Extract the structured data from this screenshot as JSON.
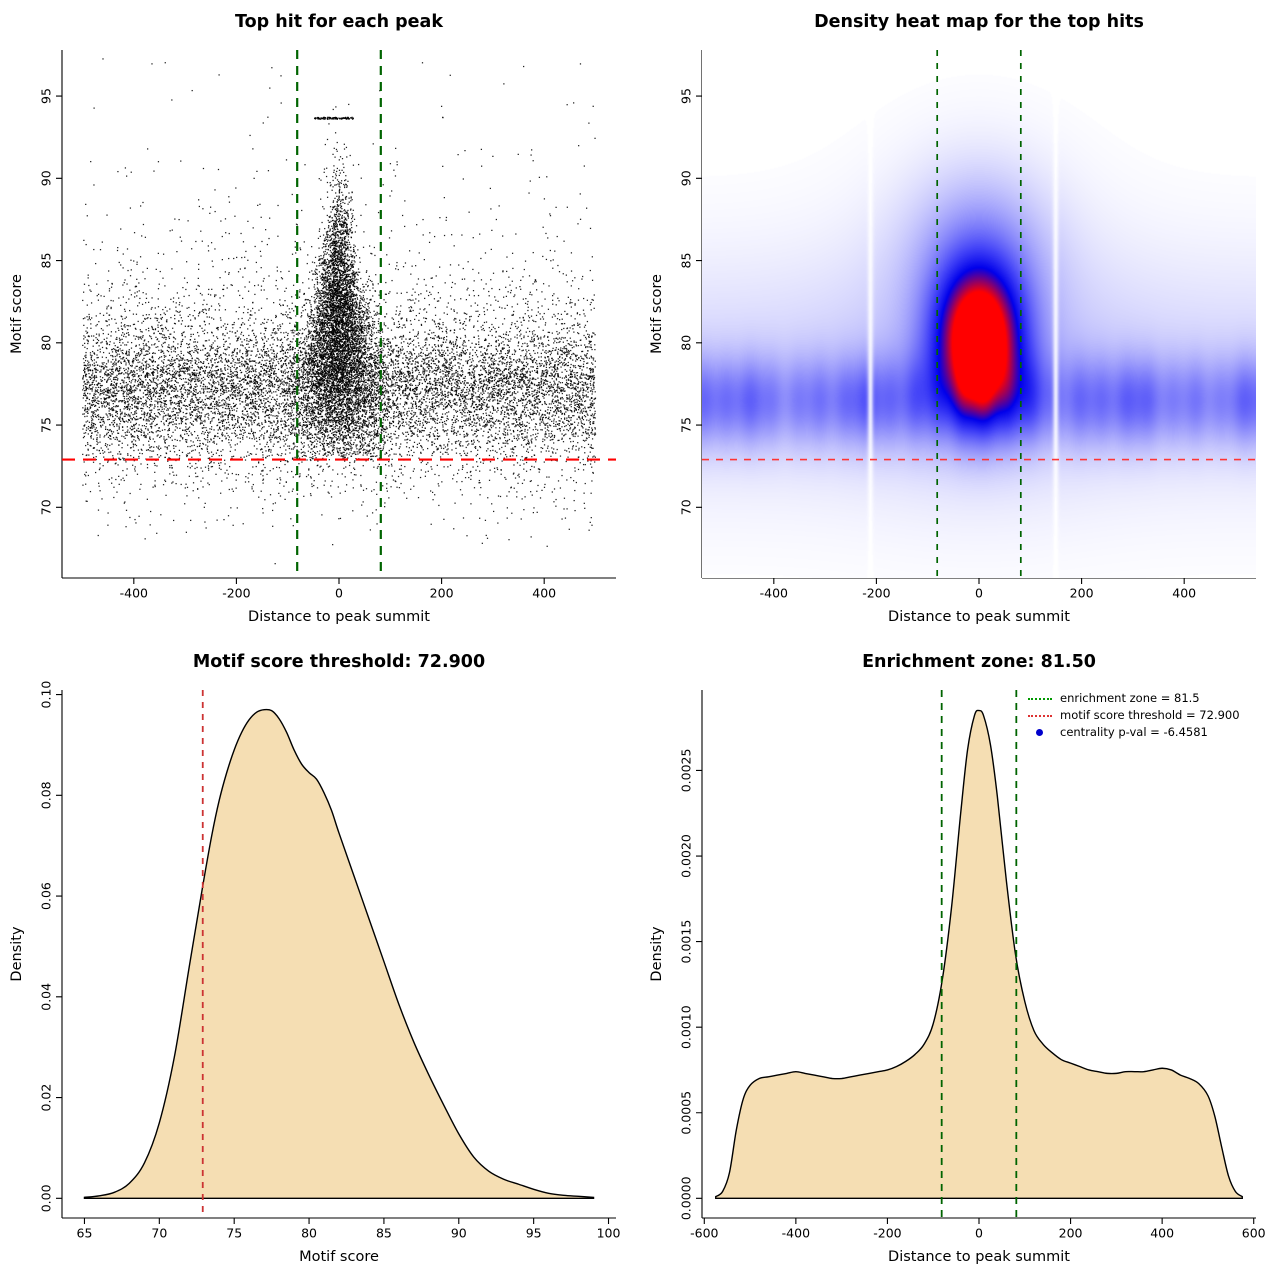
{
  "figure": {
    "background": "#ffffff",
    "motif_score_threshold": 72.9,
    "enrichment_zone": 81.5,
    "centrality_p_val": -6.4581
  },
  "chart_data": [
    {
      "type": "scatter",
      "title": "Top hit for each peak",
      "xlabel": "Distance to peak summit",
      "ylabel": "Motif score",
      "xlim": [
        -540,
        540
      ],
      "ylim": [
        65.7,
        97.8
      ],
      "xticks": {
        "values": [
          -400,
          -200,
          0,
          200,
          400
        ],
        "labels": [
          "-400",
          "-200",
          "0",
          "200",
          "400"
        ]
      },
      "yticks": {
        "values": [
          70,
          75,
          80,
          85,
          90,
          95
        ],
        "labels": [
          "70",
          "75",
          "80",
          "85",
          "90",
          "95"
        ]
      },
      "point_color": "#000000",
      "lines": [
        {
          "axis": "x",
          "at": -81.5,
          "color": "#006400",
          "dash": [
            9,
            7
          ],
          "width": 2.2
        },
        {
          "axis": "x",
          "at": 81.5,
          "color": "#006400",
          "dash": [
            9,
            7
          ],
          "width": 2.2
        },
        {
          "axis": "y",
          "at": 72.9,
          "color": "#ff0000",
          "dash": [
            13,
            8
          ],
          "width": 2.2
        }
      ],
      "generate": {
        "seed": 1337,
        "background_n": 12000,
        "cluster_n": 6200,
        "x_range": [
          -500,
          500
        ],
        "dash_mark": {
          "n": 110,
          "y": 93.65,
          "x_min": -48,
          "x_max": 28
        }
      }
    },
    {
      "type": "heatmap",
      "title": "Density heat map for the top hits",
      "xlabel": "Distance to peak summit",
      "ylabel": "Motif score",
      "xlim": [
        -540,
        540
      ],
      "ylim": [
        65.7,
        97.8
      ],
      "xticks": {
        "values": [
          -400,
          -200,
          0,
          200,
          400
        ],
        "labels": [
          "-400",
          "-200",
          "0",
          "200",
          "400"
        ]
      },
      "yticks": {
        "values": [
          70,
          75,
          80,
          85,
          90,
          95
        ],
        "labels": [
          "70",
          "75",
          "80",
          "85",
          "90",
          "95"
        ]
      },
      "colors": {
        "low": "#ffffff",
        "mid": "#4646f8",
        "deep": "#0000eb",
        "high": "#ff0000"
      },
      "kernels": {
        "band": {
          "yc": 76.4,
          "sy": 1.9,
          "a": 0.62
        },
        "wide": {
          "yc": 78.0,
          "sy": 5.2,
          "a": 0.22
        },
        "center": {
          "xc": 0,
          "sx": 60,
          "yc": 80.2,
          "sy": 3.1,
          "a": 2.05
        },
        "upper": {
          "xc": 0,
          "sx": 95,
          "yc": 85.5,
          "sy": 3.6,
          "a": 0.42
        },
        "halo": {
          "xc": 0,
          "sx": 170,
          "yc": 81.0,
          "sy": 6.5,
          "a": 0.16
        },
        "gaps": [
          -212,
          150
        ]
      },
      "lines": [
        {
          "axis": "x",
          "at": -81.5,
          "color": "#006400",
          "dash": [
            6,
            7
          ],
          "width": 1.7
        },
        {
          "axis": "x",
          "at": 81.5,
          "color": "#006400",
          "dash": [
            6,
            7
          ],
          "width": 1.7
        },
        {
          "axis": "y",
          "at": 72.9,
          "color": "#ff3333",
          "dash": [
            7,
            7
          ],
          "width": 1.6
        }
      ]
    },
    {
      "type": "density",
      "title": "Motif score threshold: 72.900",
      "xlabel": "Motif score",
      "ylabel": "Density",
      "xlim": [
        63.5,
        100.5
      ],
      "ylim": [
        -0.0039,
        0.1009
      ],
      "xticks": {
        "values": [
          65,
          70,
          75,
          80,
          85,
          90,
          95,
          100
        ],
        "labels": [
          "65",
          "70",
          "75",
          "80",
          "85",
          "90",
          "95",
          "100"
        ]
      },
      "yticks": {
        "values": [
          0,
          0.02,
          0.04,
          0.06,
          0.08,
          0.1
        ],
        "labels": [
          "0.00",
          "0.02",
          "0.04",
          "0.06",
          "0.08",
          "0.10"
        ]
      },
      "fill": "#f5deb3",
      "stroke": "#000000",
      "lines": [
        {
          "axis": "x",
          "at": 72.9,
          "color": "#cc3333",
          "dash": [
            6,
            6
          ],
          "width": 1.8
        }
      ],
      "curve": [
        [
          65,
          0.0002
        ],
        [
          66,
          0.0005
        ],
        [
          67,
          0.0012
        ],
        [
          68,
          0.003
        ],
        [
          69,
          0.007
        ],
        [
          70,
          0.015
        ],
        [
          71,
          0.028
        ],
        [
          72,
          0.046
        ],
        [
          72.9,
          0.062
        ],
        [
          73.5,
          0.072
        ],
        [
          74,
          0.079
        ],
        [
          74.5,
          0.0845
        ],
        [
          75,
          0.089
        ],
        [
          75.5,
          0.0925
        ],
        [
          76,
          0.095
        ],
        [
          76.5,
          0.0965
        ],
        [
          77,
          0.097
        ],
        [
          77.5,
          0.0968
        ],
        [
          78,
          0.0952
        ],
        [
          78.5,
          0.0925
        ],
        [
          79,
          0.089
        ],
        [
          79.5,
          0.0862
        ],
        [
          80,
          0.0845
        ],
        [
          80.5,
          0.0832
        ],
        [
          81,
          0.0805
        ],
        [
          81.5,
          0.077
        ],
        [
          82,
          0.0725
        ],
        [
          83,
          0.064
        ],
        [
          84,
          0.0555
        ],
        [
          85,
          0.047
        ],
        [
          86,
          0.0385
        ],
        [
          87,
          0.031
        ],
        [
          88,
          0.0245
        ],
        [
          89,
          0.0185
        ],
        [
          90,
          0.0128
        ],
        [
          91,
          0.0082
        ],
        [
          92,
          0.0054
        ],
        [
          93,
          0.0038
        ],
        [
          94,
          0.0028
        ],
        [
          95,
          0.0018
        ],
        [
          96,
          0.001
        ],
        [
          97,
          0.0006
        ],
        [
          98,
          0.0004
        ],
        [
          99,
          0.0002
        ]
      ]
    },
    {
      "type": "density",
      "title": "Enrichment zone: 81.50",
      "xlabel": "Distance to peak summit",
      "ylabel": "Density",
      "xlim": [
        -605,
        605
      ],
      "ylim": [
        -0.000115,
        0.00297
      ],
      "xticks": {
        "values": [
          -600,
          -400,
          -200,
          0,
          200,
          400,
          600
        ],
        "labels": [
          "-600",
          "-400",
          "-200",
          "0",
          "200",
          "400",
          "600"
        ]
      },
      "yticks": {
        "values": [
          0,
          0.0005,
          0.001,
          0.0015,
          0.002,
          0.0025
        ],
        "labels": [
          "0.0000",
          "0.0005",
          "0.0010",
          "0.0015",
          "0.0020",
          "0.0025"
        ]
      },
      "fill": "#f5deb3",
      "stroke": "#000000",
      "lines": [
        {
          "axis": "x",
          "at": -81.5,
          "color": "#006400",
          "dash": [
            7,
            6
          ],
          "width": 1.8
        },
        {
          "axis": "x",
          "at": 81.5,
          "color": "#006400",
          "dash": [
            7,
            6
          ],
          "width": 1.8
        }
      ],
      "legend": {
        "items": [
          {
            "label": "enrichment zone = 81.5",
            "color": "#009900",
            "marker": "dotted-line"
          },
          {
            "label": "motif score threshold = 72.900",
            "color": "#dd3333",
            "marker": "dotted-line"
          },
          {
            "label": "centrality p-val = -6.4581",
            "color": "#0000cc",
            "marker": "point"
          }
        ]
      },
      "curve": [
        [
          -575,
          1e-05
        ],
        [
          -560,
          4e-05
        ],
        [
          -545,
          0.00015
        ],
        [
          -530,
          0.0004
        ],
        [
          -515,
          0.00058
        ],
        [
          -500,
          0.00066
        ],
        [
          -480,
          0.0007
        ],
        [
          -460,
          0.00071
        ],
        [
          -440,
          0.00072
        ],
        [
          -420,
          0.00073
        ],
        [
          -400,
          0.00074
        ],
        [
          -380,
          0.00073
        ],
        [
          -360,
          0.00072
        ],
        [
          -340,
          0.00071
        ],
        [
          -320,
          0.0007
        ],
        [
          -300,
          0.0007
        ],
        [
          -280,
          0.00071
        ],
        [
          -260,
          0.00072
        ],
        [
          -240,
          0.00073
        ],
        [
          -220,
          0.00074
        ],
        [
          -200,
          0.00075
        ],
        [
          -180,
          0.00077
        ],
        [
          -160,
          0.0008
        ],
        [
          -140,
          0.00084
        ],
        [
          -120,
          0.0009
        ],
        [
          -100,
          0.00102
        ],
        [
          -80,
          0.00128
        ],
        [
          -60,
          0.0017
        ],
        [
          -40,
          0.00225
        ],
        [
          -25,
          0.00262
        ],
        [
          -10,
          0.00282
        ],
        [
          0,
          0.00285
        ],
        [
          10,
          0.00282
        ],
        [
          25,
          0.00265
        ],
        [
          40,
          0.00235
        ],
        [
          60,
          0.00185
        ],
        [
          80,
          0.00142
        ],
        [
          100,
          0.00115
        ],
        [
          120,
          0.00098
        ],
        [
          140,
          0.0009
        ],
        [
          160,
          0.00085
        ],
        [
          180,
          0.00081
        ],
        [
          200,
          0.00079
        ],
        [
          220,
          0.00077
        ],
        [
          240,
          0.00075
        ],
        [
          260,
          0.00074
        ],
        [
          280,
          0.00073
        ],
        [
          300,
          0.00073
        ],
        [
          320,
          0.00074
        ],
        [
          340,
          0.00074
        ],
        [
          360,
          0.00074
        ],
        [
          380,
          0.00075
        ],
        [
          400,
          0.00076
        ],
        [
          420,
          0.00075
        ],
        [
          440,
          0.00072
        ],
        [
          460,
          0.0007
        ],
        [
          480,
          0.00067
        ],
        [
          500,
          0.0006
        ],
        [
          515,
          0.00048
        ],
        [
          530,
          0.0003
        ],
        [
          545,
          0.00013
        ],
        [
          560,
          4e-05
        ],
        [
          575,
          1e-05
        ]
      ]
    }
  ]
}
